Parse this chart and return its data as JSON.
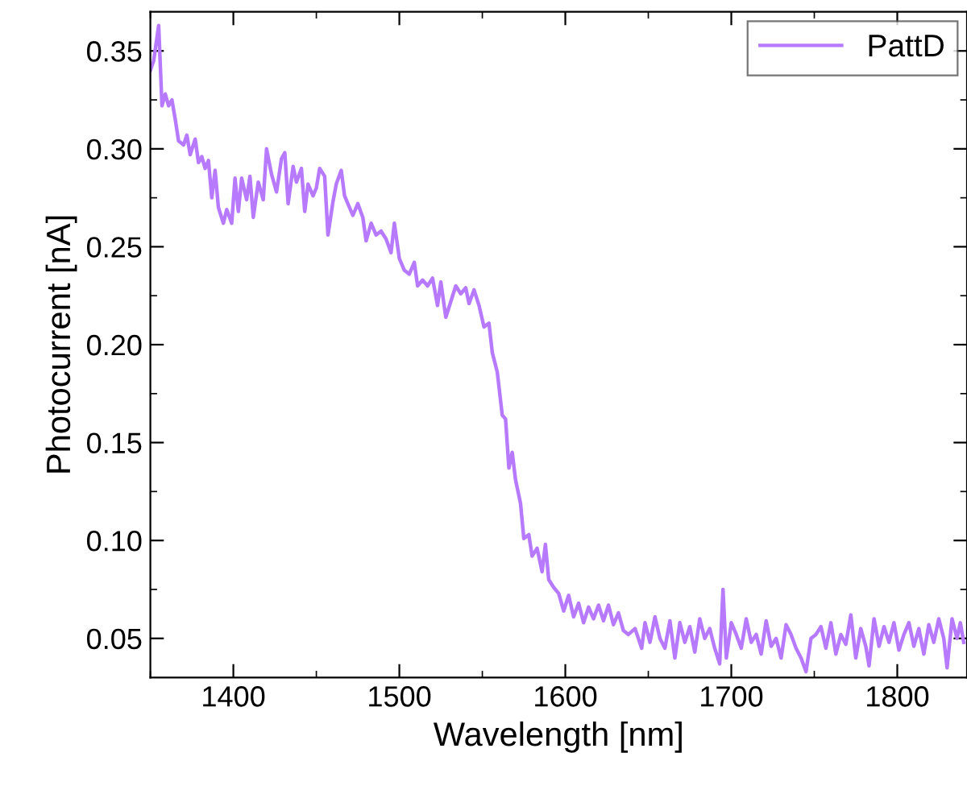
{
  "chart_data": {
    "type": "line",
    "xlabel": "Wavelength [nm]",
    "ylabel": "Photocurrent [nA]",
    "xlim": [
      1350,
      1842
    ],
    "xticks": [
      1400,
      1500,
      1600,
      1700,
      1800
    ],
    "ylim": [
      0.03,
      0.37
    ],
    "yticks": [
      0.05,
      {
        "value": 0.1,
        "label": "0.10"
      },
      0.15,
      {
        "value": 0.2,
        "label": "0.20"
      },
      0.25,
      {
        "value": 0.3,
        "label": "0.30"
      },
      0.35
    ],
    "grid": false,
    "legend": "top right",
    "marker": "none",
    "line_style": "solid",
    "series": [
      {
        "name": "PattD",
        "color": "#b77aff",
        "x": [
          1350,
          1352,
          1355,
          1357,
          1359,
          1361,
          1363,
          1365,
          1367,
          1370,
          1372,
          1374,
          1377,
          1379,
          1381,
          1383,
          1385,
          1387,
          1389,
          1391,
          1394,
          1396,
          1399,
          1401,
          1403,
          1405,
          1408,
          1410,
          1412,
          1415,
          1418,
          1420,
          1423,
          1426,
          1429,
          1431,
          1433,
          1436,
          1438,
          1441,
          1443,
          1445,
          1448,
          1450,
          1452,
          1455,
          1457,
          1460,
          1462,
          1465,
          1467,
          1470,
          1472,
          1475,
          1478,
          1480,
          1483,
          1486,
          1489,
          1492,
          1495,
          1497,
          1500,
          1503,
          1506,
          1509,
          1511,
          1514,
          1517,
          1520,
          1523,
          1525,
          1528,
          1531,
          1534,
          1537,
          1540,
          1542,
          1545,
          1548,
          1551,
          1554,
          1556,
          1559,
          1562,
          1564,
          1566,
          1568,
          1570,
          1573,
          1575,
          1578,
          1580,
          1583,
          1586,
          1588,
          1590,
          1593,
          1596,
          1599,
          1602,
          1605,
          1608,
          1611,
          1614,
          1617,
          1620,
          1623,
          1626,
          1629,
          1632,
          1635,
          1638,
          1642,
          1646,
          1648,
          1651,
          1654,
          1657,
          1660,
          1663,
          1666,
          1669,
          1672,
          1675,
          1678,
          1681,
          1684,
          1687,
          1690,
          1693,
          1695,
          1697,
          1700,
          1703,
          1706,
          1709,
          1712,
          1715,
          1718,
          1721,
          1724,
          1727,
          1730,
          1733,
          1736,
          1739,
          1742,
          1745,
          1748,
          1751,
          1754,
          1757,
          1760,
          1763,
          1766,
          1769,
          1772,
          1775,
          1778,
          1781,
          1783,
          1786,
          1789,
          1792,
          1795,
          1798,
          1801,
          1804,
          1807,
          1810,
          1813,
          1816,
          1819,
          1822,
          1825,
          1828,
          1830,
          1833,
          1836,
          1838,
          1840
        ],
        "values": [
          0.34,
          0.345,
          0.363,
          0.322,
          0.328,
          0.322,
          0.325,
          0.315,
          0.304,
          0.302,
          0.307,
          0.297,
          0.305,
          0.293,
          0.296,
          0.29,
          0.294,
          0.275,
          0.289,
          0.27,
          0.262,
          0.269,
          0.262,
          0.285,
          0.268,
          0.285,
          0.274,
          0.286,
          0.265,
          0.283,
          0.274,
          0.3,
          0.287,
          0.278,
          0.295,
          0.298,
          0.272,
          0.291,
          0.283,
          0.29,
          0.268,
          0.282,
          0.276,
          0.28,
          0.29,
          0.286,
          0.256,
          0.273,
          0.282,
          0.289,
          0.276,
          0.27,
          0.266,
          0.272,
          0.265,
          0.253,
          0.262,
          0.256,
          0.258,
          0.254,
          0.247,
          0.262,
          0.244,
          0.238,
          0.236,
          0.242,
          0.23,
          0.233,
          0.23,
          0.234,
          0.22,
          0.232,
          0.214,
          0.222,
          0.23,
          0.226,
          0.229,
          0.221,
          0.228,
          0.22,
          0.209,
          0.211,
          0.196,
          0.186,
          0.164,
          0.162,
          0.137,
          0.145,
          0.131,
          0.119,
          0.101,
          0.103,
          0.092,
          0.096,
          0.084,
          0.098,
          0.08,
          0.076,
          0.073,
          0.064,
          0.072,
          0.061,
          0.068,
          0.058,
          0.066,
          0.06,
          0.067,
          0.059,
          0.067,
          0.057,
          0.063,
          0.054,
          0.052,
          0.055,
          0.045,
          0.058,
          0.048,
          0.061,
          0.05,
          0.045,
          0.059,
          0.04,
          0.058,
          0.048,
          0.056,
          0.043,
          0.06,
          0.05,
          0.055,
          0.045,
          0.037,
          0.075,
          0.04,
          0.058,
          0.052,
          0.045,
          0.06,
          0.048,
          0.052,
          0.042,
          0.059,
          0.046,
          0.05,
          0.04,
          0.057,
          0.052,
          0.045,
          0.04,
          0.033,
          0.05,
          0.052,
          0.056,
          0.045,
          0.058,
          0.042,
          0.052,
          0.047,
          0.062,
          0.04,
          0.055,
          0.046,
          0.036,
          0.06,
          0.046,
          0.056,
          0.048,
          0.058,
          0.044,
          0.052,
          0.058,
          0.046,
          0.055,
          0.042,
          0.057,
          0.048,
          0.06,
          0.05,
          0.035,
          0.06,
          0.05,
          0.058,
          0.048
        ]
      }
    ]
  }
}
